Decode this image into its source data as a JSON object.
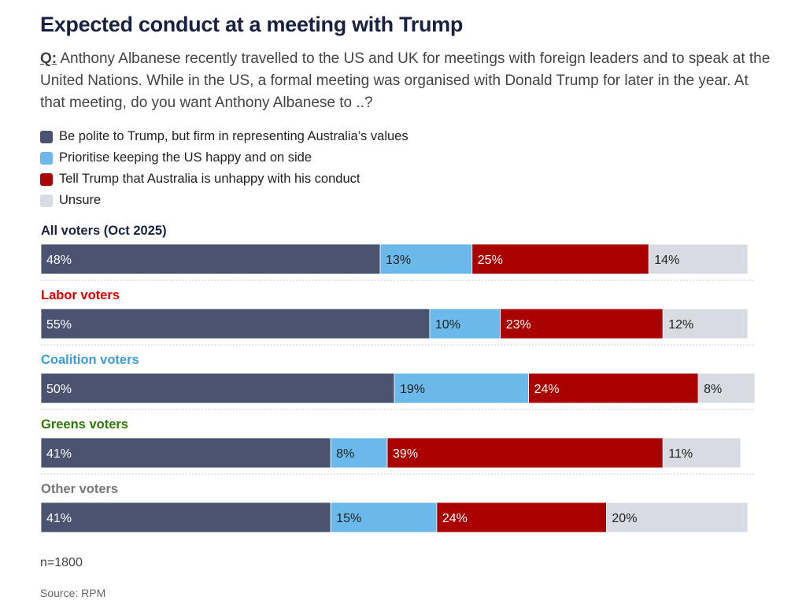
{
  "title": "Expected conduct at a meeting with Trump",
  "question": {
    "label": "Q:",
    "text": " Anthony Albanese recently travelled to the US and UK for meetings with foreign leaders and to speak at the United Nations. While in the US, a formal meeting was organised with Donald Trump for later in the year. At that meeting, do you want Anthony Albanese to ..?"
  },
  "colors": {
    "polite": "#4a5370",
    "prioritise": "#6ab9ea",
    "tell": "#a90000",
    "unsure": "#d8dbe2"
  },
  "footnote": "n=1800",
  "source": "Source: RPM",
  "chart_data": {
    "type": "bar",
    "orientation": "horizontal",
    "stacked": true,
    "unit": "%",
    "categories": [
      "All voters (Oct 2025)",
      "Labor voters",
      "Coalition voters",
      "Greens voters",
      "Other voters"
    ],
    "category_colors": [
      "#1a2040",
      "#e00000",
      "#3b9be0",
      "#2a7a00",
      "#777777"
    ],
    "series": [
      {
        "name": "Be polite to Trump, but firm in representing Australia’s values",
        "key": "polite",
        "color": "#4a5370",
        "label_color": "#ffffff",
        "values": [
          48,
          55,
          50,
          41,
          41
        ]
      },
      {
        "name": "Prioritise keeping the US happy and on side",
        "key": "prioritise",
        "color": "#6ab9ea",
        "label_color": "#222222",
        "values": [
          13,
          10,
          19,
          8,
          15
        ]
      },
      {
        "name": "Tell Trump that Australia is unhappy with his conduct",
        "key": "tell",
        "color": "#a90000",
        "label_color": "#ffffff",
        "values": [
          25,
          23,
          24,
          39,
          24
        ]
      },
      {
        "name": "Unsure",
        "key": "unsure",
        "color": "#d8dbe2",
        "label_color": "#222222",
        "values": [
          14,
          12,
          8,
          11,
          20
        ]
      }
    ],
    "legend_position": "top-left",
    "grid": false
  }
}
